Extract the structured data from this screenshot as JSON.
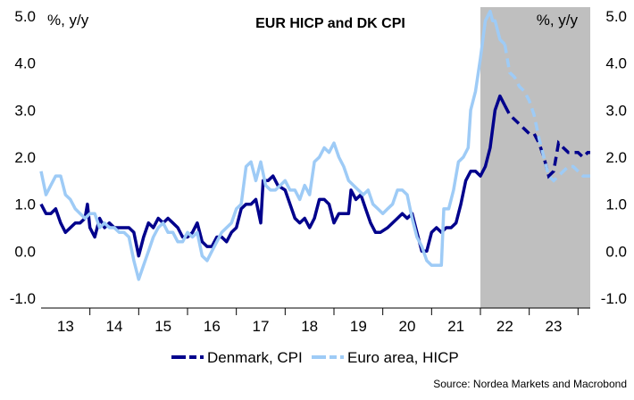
{
  "chart_data": {
    "type": "line",
    "title": "EUR HICP and DK CPI",
    "y_unit_left": "%, y/y",
    "y_unit_right": "%, y/y",
    "source": "Source: Nordea Markets and Macrobond",
    "ylim": [
      -1.2,
      5.0
    ],
    "yticks": [
      -1.0,
      0.0,
      1.0,
      2.0,
      3.0,
      4.0,
      5.0
    ],
    "ytick_labels": [
      "-1.0",
      "0.0",
      "1.0",
      "2.0",
      "3.0",
      "4.0",
      "5.0"
    ],
    "xlim": [
      2012.5,
      2023.75
    ],
    "xtick_labels": [
      "13",
      "14",
      "15",
      "16",
      "17",
      "18",
      "19",
      "20",
      "21",
      "22",
      "23"
    ],
    "xtick_label_positions": [
      2013.0,
      2014.0,
      2015.0,
      2016.0,
      2017.0,
      2018.0,
      2019.0,
      2020.0,
      2021.0,
      2022.0,
      2023.0
    ],
    "xtick_marks": [
      2013.5,
      2014.5,
      2015.5,
      2016.5,
      2017.5,
      2018.5,
      2019.5,
      2020.5,
      2021.5,
      2022.5,
      2023.5
    ],
    "forecast_start": 2021.5,
    "forecast_shade_color": "#bfbfbf",
    "grid": false,
    "legend_position": "bottom",
    "series": [
      {
        "name": "Denmark, CPI",
        "color": "#00008c",
        "actual": [
          [
            2012.5,
            1.0
          ],
          [
            2012.6,
            0.8
          ],
          [
            2012.7,
            0.8
          ],
          [
            2012.8,
            0.9
          ],
          [
            2012.9,
            0.6
          ],
          [
            2013.0,
            0.4
          ],
          [
            2013.1,
            0.5
          ],
          [
            2013.2,
            0.6
          ],
          [
            2013.3,
            0.6
          ],
          [
            2013.4,
            0.7
          ],
          [
            2013.45,
            1.0
          ],
          [
            2013.5,
            0.5
          ],
          [
            2013.6,
            0.3
          ],
          [
            2013.7,
            0.7
          ],
          [
            2013.8,
            0.5
          ],
          [
            2013.9,
            0.6
          ],
          [
            2014.0,
            0.5
          ],
          [
            2014.1,
            0.5
          ],
          [
            2014.2,
            0.5
          ],
          [
            2014.3,
            0.5
          ],
          [
            2014.4,
            0.4
          ],
          [
            2014.5,
            -0.1
          ],
          [
            2014.6,
            0.3
          ],
          [
            2014.7,
            0.6
          ],
          [
            2014.8,
            0.5
          ],
          [
            2014.9,
            0.7
          ],
          [
            2015.0,
            0.6
          ],
          [
            2015.1,
            0.7
          ],
          [
            2015.2,
            0.6
          ],
          [
            2015.3,
            0.5
          ],
          [
            2015.4,
            0.3
          ],
          [
            2015.5,
            0.3
          ],
          [
            2015.6,
            0.4
          ],
          [
            2015.7,
            0.6
          ],
          [
            2015.8,
            0.2
          ],
          [
            2015.9,
            0.1
          ],
          [
            2016.0,
            0.1
          ],
          [
            2016.1,
            0.3
          ],
          [
            2016.2,
            0.3
          ],
          [
            2016.3,
            0.2
          ],
          [
            2016.4,
            0.4
          ],
          [
            2016.5,
            0.5
          ],
          [
            2016.6,
            0.9
          ],
          [
            2016.7,
            1.0
          ],
          [
            2016.8,
            1.0
          ],
          [
            2016.9,
            1.1
          ],
          [
            2017.0,
            0.6
          ],
          [
            2017.05,
            1.5
          ],
          [
            2017.15,
            1.5
          ],
          [
            2017.25,
            1.6
          ],
          [
            2017.35,
            1.4
          ],
          [
            2017.5,
            1.3
          ],
          [
            2017.6,
            1.0
          ],
          [
            2017.7,
            0.7
          ],
          [
            2017.8,
            0.6
          ],
          [
            2017.9,
            0.7
          ],
          [
            2018.0,
            0.5
          ],
          [
            2018.1,
            0.7
          ],
          [
            2018.2,
            1.1
          ],
          [
            2018.3,
            1.1
          ],
          [
            2018.4,
            1.0
          ],
          [
            2018.5,
            0.6
          ],
          [
            2018.6,
            0.8
          ],
          [
            2018.7,
            0.8
          ],
          [
            2018.8,
            0.8
          ],
          [
            2018.85,
            1.3
          ],
          [
            2018.95,
            1.1
          ],
          [
            2019.05,
            1.2
          ],
          [
            2019.15,
            0.9
          ],
          [
            2019.25,
            0.6
          ],
          [
            2019.35,
            0.4
          ],
          [
            2019.45,
            0.4
          ],
          [
            2019.6,
            0.5
          ],
          [
            2019.7,
            0.6
          ],
          [
            2019.8,
            0.7
          ],
          [
            2019.9,
            0.8
          ],
          [
            2020.0,
            0.7
          ],
          [
            2020.1,
            0.8
          ],
          [
            2020.2,
            0.4
          ],
          [
            2020.3,
            0.0
          ],
          [
            2020.4,
            0.0
          ],
          [
            2020.5,
            0.4
          ],
          [
            2020.6,
            0.5
          ],
          [
            2020.7,
            0.4
          ],
          [
            2020.8,
            0.5
          ],
          [
            2020.9,
            0.5
          ],
          [
            2021.0,
            0.6
          ],
          [
            2021.1,
            1.0
          ],
          [
            2021.2,
            1.5
          ],
          [
            2021.3,
            1.7
          ],
          [
            2021.4,
            1.7
          ],
          [
            2021.5,
            1.6
          ],
          [
            2021.6,
            1.8
          ],
          [
            2021.7,
            2.2
          ],
          [
            2021.8,
            3.0
          ],
          [
            2021.9,
            3.3
          ],
          [
            2022.0,
            3.1
          ]
        ],
        "forecast": [
          [
            2022.0,
            3.1
          ],
          [
            2022.1,
            2.9
          ],
          [
            2022.2,
            2.8
          ],
          [
            2022.3,
            2.7
          ],
          [
            2022.4,
            2.6
          ],
          [
            2022.5,
            2.5
          ],
          [
            2022.6,
            2.5
          ],
          [
            2022.7,
            2.3
          ],
          [
            2022.8,
            2.0
          ],
          [
            2022.9,
            1.6
          ],
          [
            2023.0,
            1.7
          ],
          [
            2023.1,
            2.3
          ],
          [
            2023.2,
            2.2
          ],
          [
            2023.3,
            2.1
          ],
          [
            2023.4,
            2.1
          ],
          [
            2023.5,
            2.1
          ],
          [
            2023.6,
            2.0
          ],
          [
            2023.7,
            2.1
          ],
          [
            2023.75,
            2.1
          ]
        ]
      },
      {
        "name": "Euro area, HICP",
        "color": "#9ecbf6",
        "actual": [
          [
            2012.5,
            1.7
          ],
          [
            2012.6,
            1.2
          ],
          [
            2012.7,
            1.4
          ],
          [
            2012.8,
            1.6
          ],
          [
            2012.9,
            1.6
          ],
          [
            2013.0,
            1.2
          ],
          [
            2013.1,
            1.1
          ],
          [
            2013.2,
            0.9
          ],
          [
            2013.3,
            0.8
          ],
          [
            2013.4,
            0.7
          ],
          [
            2013.5,
            0.8
          ],
          [
            2013.6,
            0.8
          ],
          [
            2013.7,
            0.5
          ],
          [
            2013.8,
            0.6
          ],
          [
            2013.9,
            0.5
          ],
          [
            2014.0,
            0.5
          ],
          [
            2014.1,
            0.4
          ],
          [
            2014.2,
            0.4
          ],
          [
            2014.3,
            0.3
          ],
          [
            2014.4,
            -0.2
          ],
          [
            2014.5,
            -0.6
          ],
          [
            2014.6,
            -0.3
          ],
          [
            2014.7,
            0.0
          ],
          [
            2014.8,
            0.3
          ],
          [
            2014.9,
            0.5
          ],
          [
            2015.0,
            0.6
          ],
          [
            2015.1,
            0.4
          ],
          [
            2015.2,
            0.4
          ],
          [
            2015.3,
            0.2
          ],
          [
            2015.4,
            0.2
          ],
          [
            2015.5,
            0.4
          ],
          [
            2015.6,
            0.3
          ],
          [
            2015.7,
            0.4
          ],
          [
            2015.8,
            -0.1
          ],
          [
            2015.9,
            -0.2
          ],
          [
            2016.0,
            0.0
          ],
          [
            2016.1,
            0.2
          ],
          [
            2016.2,
            0.4
          ],
          [
            2016.3,
            0.5
          ],
          [
            2016.4,
            0.6
          ],
          [
            2016.5,
            0.9
          ],
          [
            2016.6,
            1.0
          ],
          [
            2016.7,
            1.8
          ],
          [
            2016.8,
            1.9
          ],
          [
            2016.9,
            1.5
          ],
          [
            2017.0,
            1.9
          ],
          [
            2017.1,
            1.4
          ],
          [
            2017.2,
            1.3
          ],
          [
            2017.3,
            1.3
          ],
          [
            2017.4,
            1.4
          ],
          [
            2017.5,
            1.5
          ],
          [
            2017.6,
            1.3
          ],
          [
            2017.7,
            1.3
          ],
          [
            2017.8,
            1.1
          ],
          [
            2017.9,
            1.4
          ],
          [
            2018.0,
            1.2
          ],
          [
            2018.1,
            1.9
          ],
          [
            2018.2,
            2.0
          ],
          [
            2018.3,
            2.2
          ],
          [
            2018.4,
            2.1
          ],
          [
            2018.5,
            2.3
          ],
          [
            2018.6,
            2.0
          ],
          [
            2018.7,
            1.8
          ],
          [
            2018.8,
            1.5
          ],
          [
            2018.9,
            1.4
          ],
          [
            2019.0,
            1.3
          ],
          [
            2019.1,
            1.2
          ],
          [
            2019.2,
            1.3
          ],
          [
            2019.3,
            1.0
          ],
          [
            2019.4,
            0.9
          ],
          [
            2019.5,
            0.8
          ],
          [
            2019.6,
            0.9
          ],
          [
            2019.7,
            1.0
          ],
          [
            2019.8,
            1.3
          ],
          [
            2019.9,
            1.3
          ],
          [
            2020.0,
            1.2
          ],
          [
            2020.1,
            0.7
          ],
          [
            2020.2,
            0.3
          ],
          [
            2020.3,
            0.1
          ],
          [
            2020.4,
            -0.2
          ],
          [
            2020.5,
            -0.3
          ],
          [
            2020.6,
            -0.3
          ],
          [
            2020.7,
            -0.3
          ],
          [
            2020.75,
            0.9
          ],
          [
            2020.85,
            0.9
          ],
          [
            2020.95,
            1.3
          ],
          [
            2021.05,
            1.9
          ],
          [
            2021.15,
            2.0
          ],
          [
            2021.25,
            2.2
          ],
          [
            2021.3,
            3.0
          ],
          [
            2021.4,
            3.4
          ],
          [
            2021.5,
            4.1
          ],
          [
            2021.6,
            4.9
          ],
          [
            2021.7,
            5.1
          ],
          [
            2021.75,
            4.9
          ],
          [
            2021.8,
            4.9
          ],
          [
            2021.9,
            4.5
          ],
          [
            2022.0,
            4.4
          ]
        ],
        "forecast": [
          [
            2022.0,
            4.4
          ],
          [
            2022.1,
            3.8
          ],
          [
            2022.2,
            3.7
          ],
          [
            2022.3,
            3.5
          ],
          [
            2022.4,
            3.4
          ],
          [
            2022.5,
            3.2
          ],
          [
            2022.6,
            2.9
          ],
          [
            2022.7,
            2.4
          ],
          [
            2022.8,
            2.0
          ],
          [
            2022.9,
            1.6
          ],
          [
            2023.0,
            1.5
          ],
          [
            2023.1,
            1.6
          ],
          [
            2023.2,
            1.7
          ],
          [
            2023.3,
            1.8
          ],
          [
            2023.4,
            1.8
          ],
          [
            2023.5,
            1.7
          ],
          [
            2023.6,
            1.6
          ],
          [
            2023.7,
            1.6
          ],
          [
            2023.75,
            1.6
          ]
        ]
      }
    ]
  }
}
